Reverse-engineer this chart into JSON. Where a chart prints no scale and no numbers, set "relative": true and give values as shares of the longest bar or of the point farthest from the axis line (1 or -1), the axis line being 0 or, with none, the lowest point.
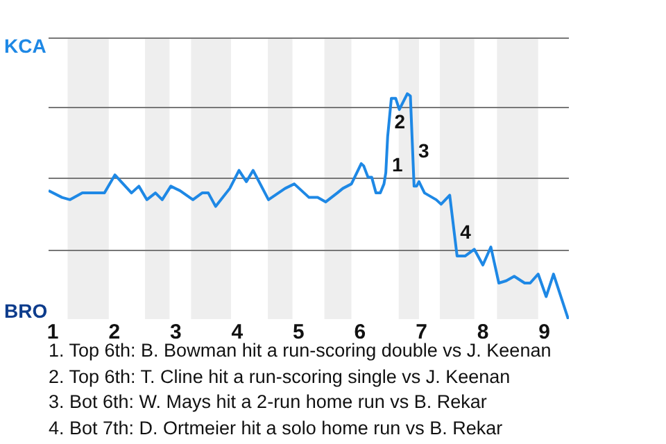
{
  "chart_data": {
    "type": "line",
    "relative": true,
    "x": [
      0.93,
      1.15,
      1.28,
      1.48,
      1.59,
      1.84,
      2.01,
      2.28,
      2.4,
      2.53,
      2.67,
      2.78,
      2.92,
      3.07,
      3.28,
      3.43,
      3.53,
      3.65,
      3.88,
      4.03,
      4.15,
      4.26,
      4.51,
      4.78,
      4.93,
      5.17,
      5.31,
      5.44,
      5.63,
      5.72,
      5.86,
      6.02,
      6.06,
      6.13,
      6.19,
      6.26,
      6.33,
      6.39,
      6.42,
      6.45,
      6.51,
      6.58,
      6.64,
      6.77,
      6.82,
      6.88,
      6.92,
      6.96,
      7.05,
      7.24,
      7.32,
      7.46,
      7.58,
      7.71,
      7.86,
      8,
      8.13,
      8.26,
      8.38,
      8.51,
      8.68,
      8.77,
      8.9,
      9.03,
      9.15,
      9.39
    ],
    "series": [
      {
        "color": "#1e88e5",
        "values": [
          0.57,
          0.54,
          0.53,
          0.56,
          0.56,
          0.56,
          0.64,
          0.56,
          0.59,
          0.53,
          0.56,
          0.53,
          0.59,
          0.57,
          0.53,
          0.56,
          0.56,
          0.5,
          0.58,
          0.66,
          0.61,
          0.66,
          0.53,
          0.58,
          0.6,
          0.54,
          0.54,
          0.52,
          0.56,
          0.58,
          0.6,
          0.69,
          0.68,
          0.63,
          0.63,
          0.56,
          0.56,
          0.6,
          0.65,
          0.81,
          0.98,
          0.98,
          0.93,
          1,
          0.99,
          0.59,
          0.59,
          0.61,
          0.56,
          0.53,
          0.51,
          0.55,
          0.28,
          0.28,
          0.31,
          0.24,
          0.32,
          0.16,
          0.17,
          0.19,
          0.16,
          0.16,
          0.2,
          0.1,
          0.2,
          0
        ]
      }
    ],
    "xlim": [
      0.93,
      9.4
    ],
    "xticks": [
      1,
      2,
      3,
      4,
      5,
      6,
      7,
      8,
      9
    ],
    "grid": false,
    "legend": false,
    "marker": "none",
    "line_style": "solid",
    "ref_lines": [
      {
        "axis": "y",
        "value": 0.31,
        "color": "#777777"
      },
      {
        "axis": "y",
        "value": 0.63,
        "color": "#777777"
      },
      {
        "axis": "y",
        "value": 0.94,
        "color": "#777777"
      },
      {
        "axis": "y",
        "value": 1.25,
        "color": "#777777"
      }
    ],
    "bands": [
      {
        "axis": "x",
        "from": 1.24,
        "to": 1.91,
        "color": "#eeeeee"
      },
      {
        "axis": "x",
        "from": 2.5,
        "to": 2.9,
        "color": "#eeeeee"
      },
      {
        "axis": "x",
        "from": 3.25,
        "to": 3.9,
        "color": "#eeeeee"
      },
      {
        "axis": "x",
        "from": 4.5,
        "to": 4.9,
        "color": "#eeeeee"
      },
      {
        "axis": "x",
        "from": 5.42,
        "to": 5.86,
        "color": "#eeeeee"
      },
      {
        "axis": "x",
        "from": 6.63,
        "to": 6.96,
        "color": "#eeeeee"
      },
      {
        "axis": "x",
        "from": 7.3,
        "to": 7.86,
        "color": "#eeeeee"
      },
      {
        "axis": "x",
        "from": 8.23,
        "to": 8.9,
        "color": "#eeeeee"
      }
    ],
    "annotations": [
      "KCA",
      "BRO",
      {
        "text": "1",
        "x": 6.43,
        "y": 0.68
      },
      {
        "text": "2",
        "x": 6.47,
        "y": 0.87
      },
      {
        "text": "3",
        "x": 6.86,
        "y": 0.74
      },
      {
        "text": "4",
        "x": 7.54,
        "y": 0.38
      },
      "1. Top 6th: B. Bowman hit a run-scoring double vs J. Keenan",
      "2. Top 6th: T. Cline hit a run-scoring single vs J. Keenan",
      "3. Bot 6th: W. Mays hit a 2-run home run vs B. Rekar",
      "4. Bot 7th: D. Ortmeier hit a solo home run vs B. Rekar"
    ]
  }
}
